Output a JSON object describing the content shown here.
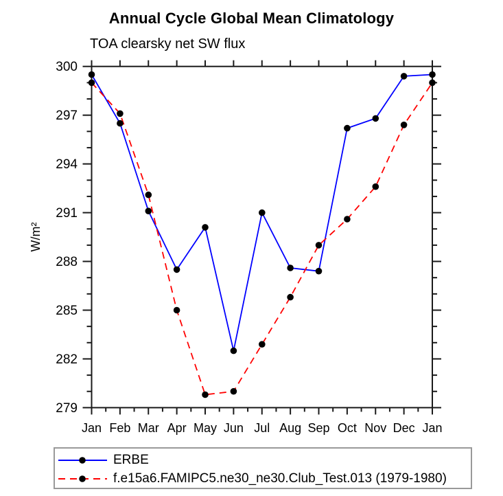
{
  "header": {
    "title": "Annual Cycle Global Mean Climatology",
    "subtitle": "TOA clearsky net SW flux"
  },
  "chart_data": {
    "type": "line",
    "title": "Annual Cycle Global Mean Climatology",
    "subtitle": "TOA clearsky net SW flux",
    "xlabel": "",
    "ylabel": "W/m²",
    "categories": [
      "Jan",
      "Feb",
      "Mar",
      "Apr",
      "May",
      "Jun",
      "Jul",
      "Aug",
      "Sep",
      "Oct",
      "Nov",
      "Dec",
      "Jan"
    ],
    "ylim": [
      279,
      300
    ],
    "yticks": [
      279,
      282,
      285,
      288,
      291,
      294,
      297,
      300
    ],
    "y_minor_step": 1,
    "x_minor_step": 0.5,
    "grid": false,
    "legend_position": "bottom",
    "axis_color": "#1a1a1a",
    "marker_color": "#000000",
    "series": [
      {
        "name": "ERBE",
        "color": "#0000ff",
        "style": "solid",
        "marker": "circle",
        "values": [
          299.5,
          296.5,
          291.1,
          287.5,
          290.1,
          282.5,
          291.0,
          287.6,
          287.4,
          296.2,
          296.8,
          299.4,
          299.5
        ]
      },
      {
        "name": "f.e15a6.FAMIPC5.ne30_ne30.Club_Test.013 (1979-1980)",
        "color": "#ff0000",
        "style": "dashed",
        "marker": "circle",
        "values": [
          299.0,
          297.1,
          292.1,
          285.0,
          279.8,
          280.0,
          282.9,
          285.8,
          289.0,
          290.6,
          292.6,
          296.4,
          299.0
        ]
      }
    ]
  }
}
